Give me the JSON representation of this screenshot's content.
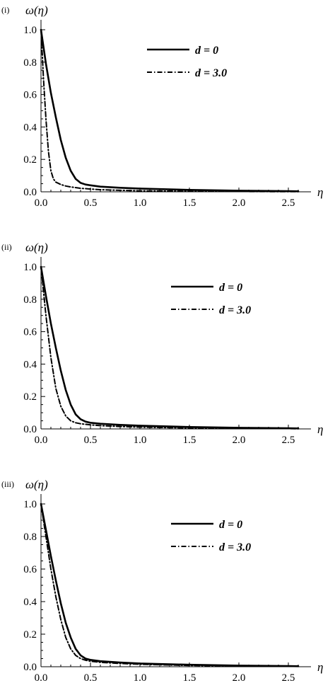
{
  "chart_data": [
    {
      "type": "line",
      "panel_label": "(i)",
      "xlabel": "η",
      "ylabel": "ω(η)",
      "xlim": [
        0,
        2.6
      ],
      "ylim": [
        0,
        1.05
      ],
      "xticks": [
        "0.0",
        "0.5",
        "1.0",
        "1.5",
        "2.0",
        "2.5"
      ],
      "yticks": [
        "0.0",
        "0.2",
        "0.4",
        "0.6",
        "0.8",
        "1.0"
      ],
      "grid": false,
      "legend_position": "top-right",
      "series": [
        {
          "name": "d = 0",
          "style": "solid",
          "x": [
            0,
            0.05,
            0.1,
            0.15,
            0.2,
            0.25,
            0.3,
            0.35,
            0.4,
            0.45,
            0.5,
            0.6,
            0.8,
            1.0,
            1.5,
            2.0,
            2.5,
            2.6
          ],
          "y": [
            1.0,
            0.79,
            0.61,
            0.46,
            0.32,
            0.21,
            0.13,
            0.08,
            0.055,
            0.045,
            0.04,
            0.032,
            0.025,
            0.02,
            0.012,
            0.007,
            0.004,
            0.003
          ]
        },
        {
          "name": "d = 3.0",
          "style": "dashdot",
          "x": [
            0,
            0.025,
            0.05,
            0.075,
            0.1,
            0.125,
            0.15,
            0.2,
            0.25,
            0.3,
            0.4,
            0.5,
            0.6,
            0.8,
            1.0,
            1.5,
            2.0,
            2.5,
            2.6
          ],
          "y": [
            1.0,
            0.7,
            0.45,
            0.25,
            0.13,
            0.08,
            0.06,
            0.045,
            0.036,
            0.03,
            0.022,
            0.017,
            0.013,
            0.009,
            0.006,
            0.003,
            0.002,
            0.001,
            0.001
          ]
        }
      ]
    },
    {
      "type": "line",
      "panel_label": "(ii)",
      "xlabel": "η",
      "ylabel": "ω(η)",
      "xlim": [
        0,
        2.6
      ],
      "ylim": [
        0,
        1.05
      ],
      "xticks": [
        "0.0",
        "0.5",
        "1.0",
        "1.5",
        "2.0",
        "2.5"
      ],
      "yticks": [
        "0.0",
        "0.2",
        "0.4",
        "0.6",
        "0.8",
        "1.0"
      ],
      "grid": false,
      "legend_position": "top-right",
      "series": [
        {
          "name": "d = 0",
          "style": "solid",
          "x": [
            0,
            0.05,
            0.1,
            0.15,
            0.2,
            0.25,
            0.3,
            0.35,
            0.4,
            0.45,
            0.5,
            0.6,
            0.8,
            1.0,
            1.5,
            2.0,
            2.5,
            2.6
          ],
          "y": [
            1.0,
            0.82,
            0.65,
            0.5,
            0.36,
            0.24,
            0.15,
            0.09,
            0.06,
            0.045,
            0.038,
            0.032,
            0.025,
            0.02,
            0.012,
            0.007,
            0.004,
            0.003
          ]
        },
        {
          "name": "d = 3.0",
          "style": "dashdot",
          "x": [
            0,
            0.05,
            0.1,
            0.15,
            0.2,
            0.25,
            0.3,
            0.35,
            0.4,
            0.5,
            0.6,
            0.8,
            1.0,
            1.5,
            2.0,
            2.5,
            2.6
          ],
          "y": [
            1.0,
            0.7,
            0.44,
            0.25,
            0.14,
            0.08,
            0.05,
            0.038,
            0.032,
            0.025,
            0.02,
            0.015,
            0.011,
            0.006,
            0.003,
            0.002,
            0.001
          ]
        }
      ]
    },
    {
      "type": "line",
      "panel_label": "(iii)",
      "xlabel": "η",
      "ylabel": "ω(η)",
      "xlim": [
        0,
        2.6
      ],
      "ylim": [
        0,
        1.05
      ],
      "xticks": [
        "0.0",
        "0.5",
        "1.0",
        "1.5",
        "2.0",
        "2.5"
      ],
      "yticks": [
        "0.0",
        "0.2",
        "0.4",
        "0.6",
        "0.8",
        "1.0"
      ],
      "grid": false,
      "legend_position": "top-right",
      "series": [
        {
          "name": "d = 0",
          "style": "solid",
          "x": [
            0,
            0.05,
            0.1,
            0.15,
            0.2,
            0.25,
            0.3,
            0.35,
            0.4,
            0.45,
            0.5,
            0.6,
            0.8,
            1.0,
            1.5,
            2.0,
            2.5,
            2.6
          ],
          "y": [
            1.0,
            0.84,
            0.68,
            0.53,
            0.39,
            0.27,
            0.18,
            0.11,
            0.07,
            0.05,
            0.042,
            0.034,
            0.026,
            0.02,
            0.012,
            0.007,
            0.004,
            0.003
          ]
        },
        {
          "name": "d = 3.0",
          "style": "dashdot",
          "x": [
            0,
            0.05,
            0.1,
            0.15,
            0.2,
            0.25,
            0.3,
            0.35,
            0.4,
            0.45,
            0.5,
            0.6,
            0.8,
            1.0,
            1.5,
            2.0,
            2.5,
            2.6
          ],
          "y": [
            1.0,
            0.8,
            0.6,
            0.43,
            0.29,
            0.18,
            0.11,
            0.07,
            0.05,
            0.04,
            0.034,
            0.027,
            0.02,
            0.015,
            0.008,
            0.004,
            0.002,
            0.002
          ]
        }
      ]
    }
  ]
}
